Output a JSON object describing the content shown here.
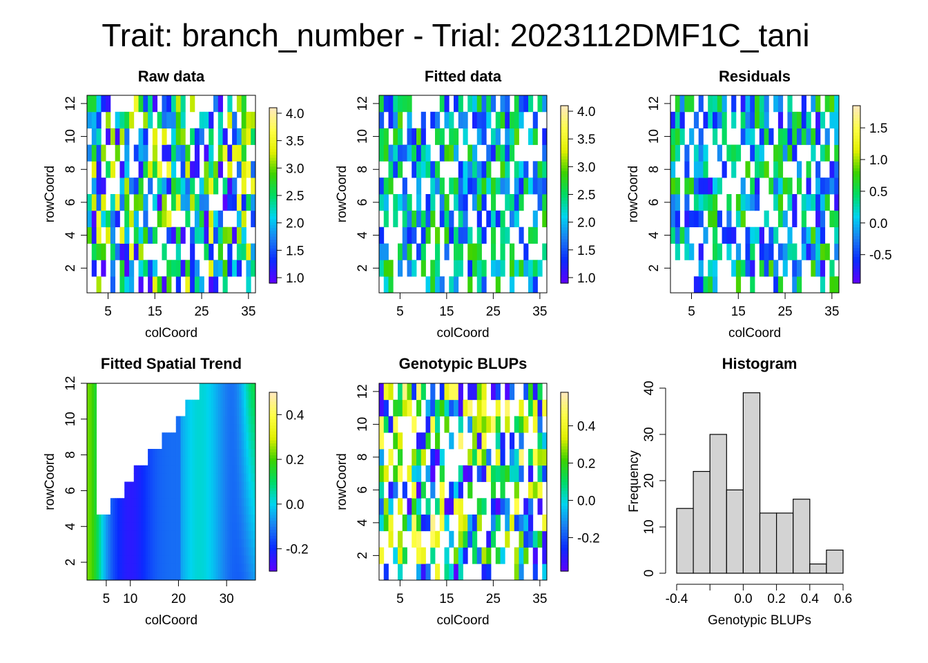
{
  "page_title": "Trait: branch_number - Trial: 2023112DMF1C_tani",
  "colors": {
    "ramp": [
      "#5B00FF",
      "#0A2BFF",
      "#1A7FF2",
      "#00D4F0",
      "#00DC64",
      "#3CD200",
      "#E1EF00",
      "#FFFF44",
      "#FFE9B8"
    ],
    "hist_fill": "#D3D3D3",
    "axis": "#000000"
  },
  "chart_data": [
    {
      "type": "heatmap",
      "title": "Raw data",
      "xlabel": "colCoord",
      "ylabel": "rowCoord",
      "xlim": [
        0.5,
        36.5
      ],
      "ylim": [
        0.5,
        12.5
      ],
      "x_ticks": [
        5,
        15,
        25,
        35
      ],
      "y_ticks": [
        2,
        4,
        6,
        8,
        10,
        12
      ],
      "color_range": [
        0.9,
        4.1
      ],
      "colorbar_ticks": [
        "1.0",
        "1.5",
        "2.0",
        "2.5",
        "3.0",
        "3.5",
        "4.0"
      ],
      "cell_values_note": "per-plot values, 36 columns x 12 rows, blank = missing",
      "seed": 11
    },
    {
      "type": "heatmap",
      "title": "Fitted data",
      "xlabel": "colCoord",
      "ylabel": "rowCoord",
      "xlim": [
        0.5,
        36.5
      ],
      "ylim": [
        0.5,
        12.5
      ],
      "x_ticks": [
        5,
        15,
        25,
        35
      ],
      "y_ticks": [
        2,
        4,
        6,
        8,
        10,
        12
      ],
      "color_range": [
        0.9,
        4.1
      ],
      "colorbar_ticks": [
        "1.0",
        "1.5",
        "2.0",
        "2.5",
        "3.0",
        "3.5",
        "4.0"
      ],
      "seed": 23
    },
    {
      "type": "heatmap",
      "title": "Residuals",
      "xlabel": "colCoord",
      "ylabel": "rowCoord",
      "xlim": [
        0.5,
        36.5
      ],
      "ylim": [
        0.5,
        12.5
      ],
      "x_ticks": [
        5,
        15,
        25,
        35
      ],
      "y_ticks": [
        2,
        4,
        6,
        8,
        10,
        12
      ],
      "color_range": [
        -0.95,
        1.85
      ],
      "colorbar_ticks": [
        "-0.5",
        "0.0",
        "0.5",
        "1.0",
        "1.5"
      ],
      "seed": 37
    },
    {
      "type": "heatmap",
      "title": "Fitted Spatial Trend",
      "xlabel": "colCoord",
      "ylabel": "rowCoord",
      "xlim": [
        1,
        36
      ],
      "ylim": [
        1,
        12
      ],
      "x_ticks": [
        5,
        10,
        20,
        30
      ],
      "y_ticks": [
        2,
        4,
        6,
        8,
        10,
        12
      ],
      "color_range": [
        -0.3,
        0.5
      ],
      "colorbar_ticks": [
        "-0.2",
        "0.0",
        "0.2",
        "0.4"
      ],
      "seed": 51
    },
    {
      "type": "heatmap",
      "title": "Genotypic BLUPs",
      "xlabel": "colCoord",
      "ylabel": "rowCoord",
      "xlim": [
        0.5,
        36.5
      ],
      "ylim": [
        0.5,
        12.5
      ],
      "x_ticks": [
        5,
        15,
        25,
        35
      ],
      "y_ticks": [
        2,
        4,
        6,
        8,
        10,
        12
      ],
      "color_range": [
        -0.38,
        0.58
      ],
      "colorbar_ticks": [
        "-0.2",
        "0.0",
        "0.2",
        "0.4"
      ],
      "seed": 67
    },
    {
      "type": "bar",
      "title": "Histogram",
      "xlabel": "Genotypic BLUPs",
      "ylabel": "Frequency",
      "bin_edges": [
        -0.4,
        -0.3,
        -0.2,
        -0.1,
        0.0,
        0.1,
        0.2,
        0.3,
        0.4,
        0.5,
        0.6
      ],
      "values": [
        14,
        22,
        30,
        18,
        39,
        13,
        13,
        16,
        2,
        5
      ],
      "xlim": [
        -0.4,
        0.6
      ],
      "ylim": [
        0,
        40
      ],
      "x_ticks": [
        "-0.4",
        "0.0",
        "0.2",
        "0.4",
        "0.6"
      ],
      "y_ticks": [
        "0",
        "10",
        "20",
        "30",
        "40"
      ]
    }
  ]
}
